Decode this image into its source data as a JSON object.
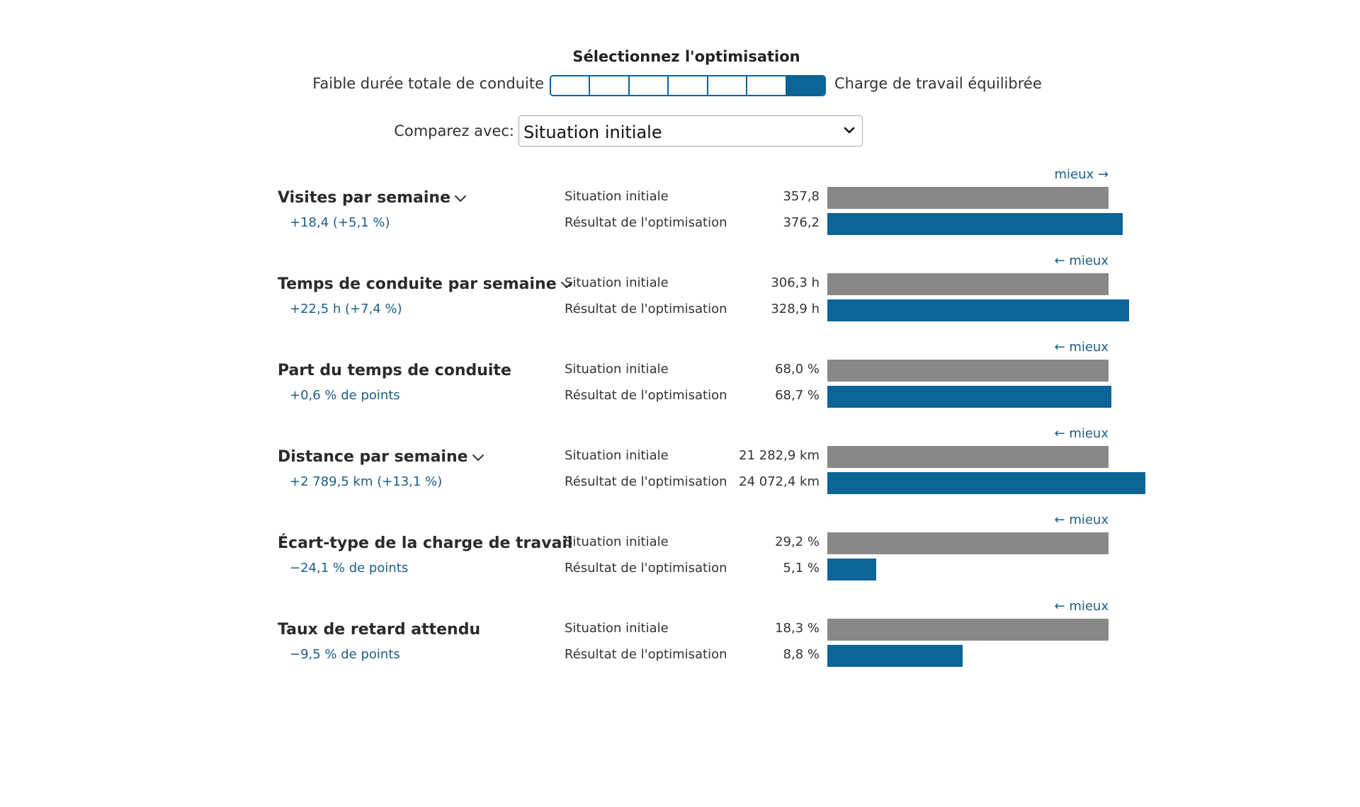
{
  "optimization": {
    "title": "Sélectionnez l'optimisation",
    "left_label": "Faible durée totale de conduite",
    "right_label": "Charge de travail équilibrée",
    "segments": 7,
    "selected_segment": 7
  },
  "compare": {
    "label": "Comparez avec:",
    "selected": "Situation initiale"
  },
  "row_labels": {
    "initial": "Situation initiale",
    "optimized": "Résultat de l'optimisation"
  },
  "colors": {
    "initial_bar": "#888888",
    "optimized_bar": "#0d6496",
    "accent_text": "#1b5e86"
  },
  "metrics": [
    {
      "title": "Visites par semaine",
      "has_dropdown": true,
      "delta": "+18,4 (+5,1 %)",
      "better": "mieux →",
      "initial_value": "357,8",
      "optimized_value": "376,2",
      "initial_bar_ratio": 1.0,
      "optimized_bar_ratio": 1.051
    },
    {
      "title": "Temps de conduite par semaine",
      "has_dropdown": true,
      "delta": "+22,5 h (+7,4 %)",
      "better": "← mieux",
      "initial_value": "306,3 h",
      "optimized_value": "328,9 h",
      "initial_bar_ratio": 1.0,
      "optimized_bar_ratio": 1.074
    },
    {
      "title": "Part du temps de conduite",
      "has_dropdown": false,
      "delta": "+0,6 % de points",
      "better": "← mieux",
      "initial_value": "68,0 %",
      "optimized_value": "68,7 %",
      "initial_bar_ratio": 1.0,
      "optimized_bar_ratio": 1.01
    },
    {
      "title": "Distance par semaine",
      "has_dropdown": true,
      "delta": "+2 789,5 km (+13,1 %)",
      "better": "← mieux",
      "initial_value": "21 282,9 km",
      "optimized_value": "24 072,4 km",
      "initial_bar_ratio": 1.0,
      "optimized_bar_ratio": 1.131
    },
    {
      "title": "Écart-type de la charge de travail",
      "has_dropdown": false,
      "delta": "−24,1 % de points",
      "better": "← mieux",
      "initial_value": "29,2 %",
      "optimized_value": "5,1 %",
      "initial_bar_ratio": 1.0,
      "optimized_bar_ratio": 0.175
    },
    {
      "title": "Taux de retard attendu",
      "has_dropdown": false,
      "delta": "−9,5 % de points",
      "better": "← mieux",
      "initial_value": "18,3 %",
      "optimized_value": "8,8 %",
      "initial_bar_ratio": 1.0,
      "optimized_bar_ratio": 0.481
    }
  ]
}
